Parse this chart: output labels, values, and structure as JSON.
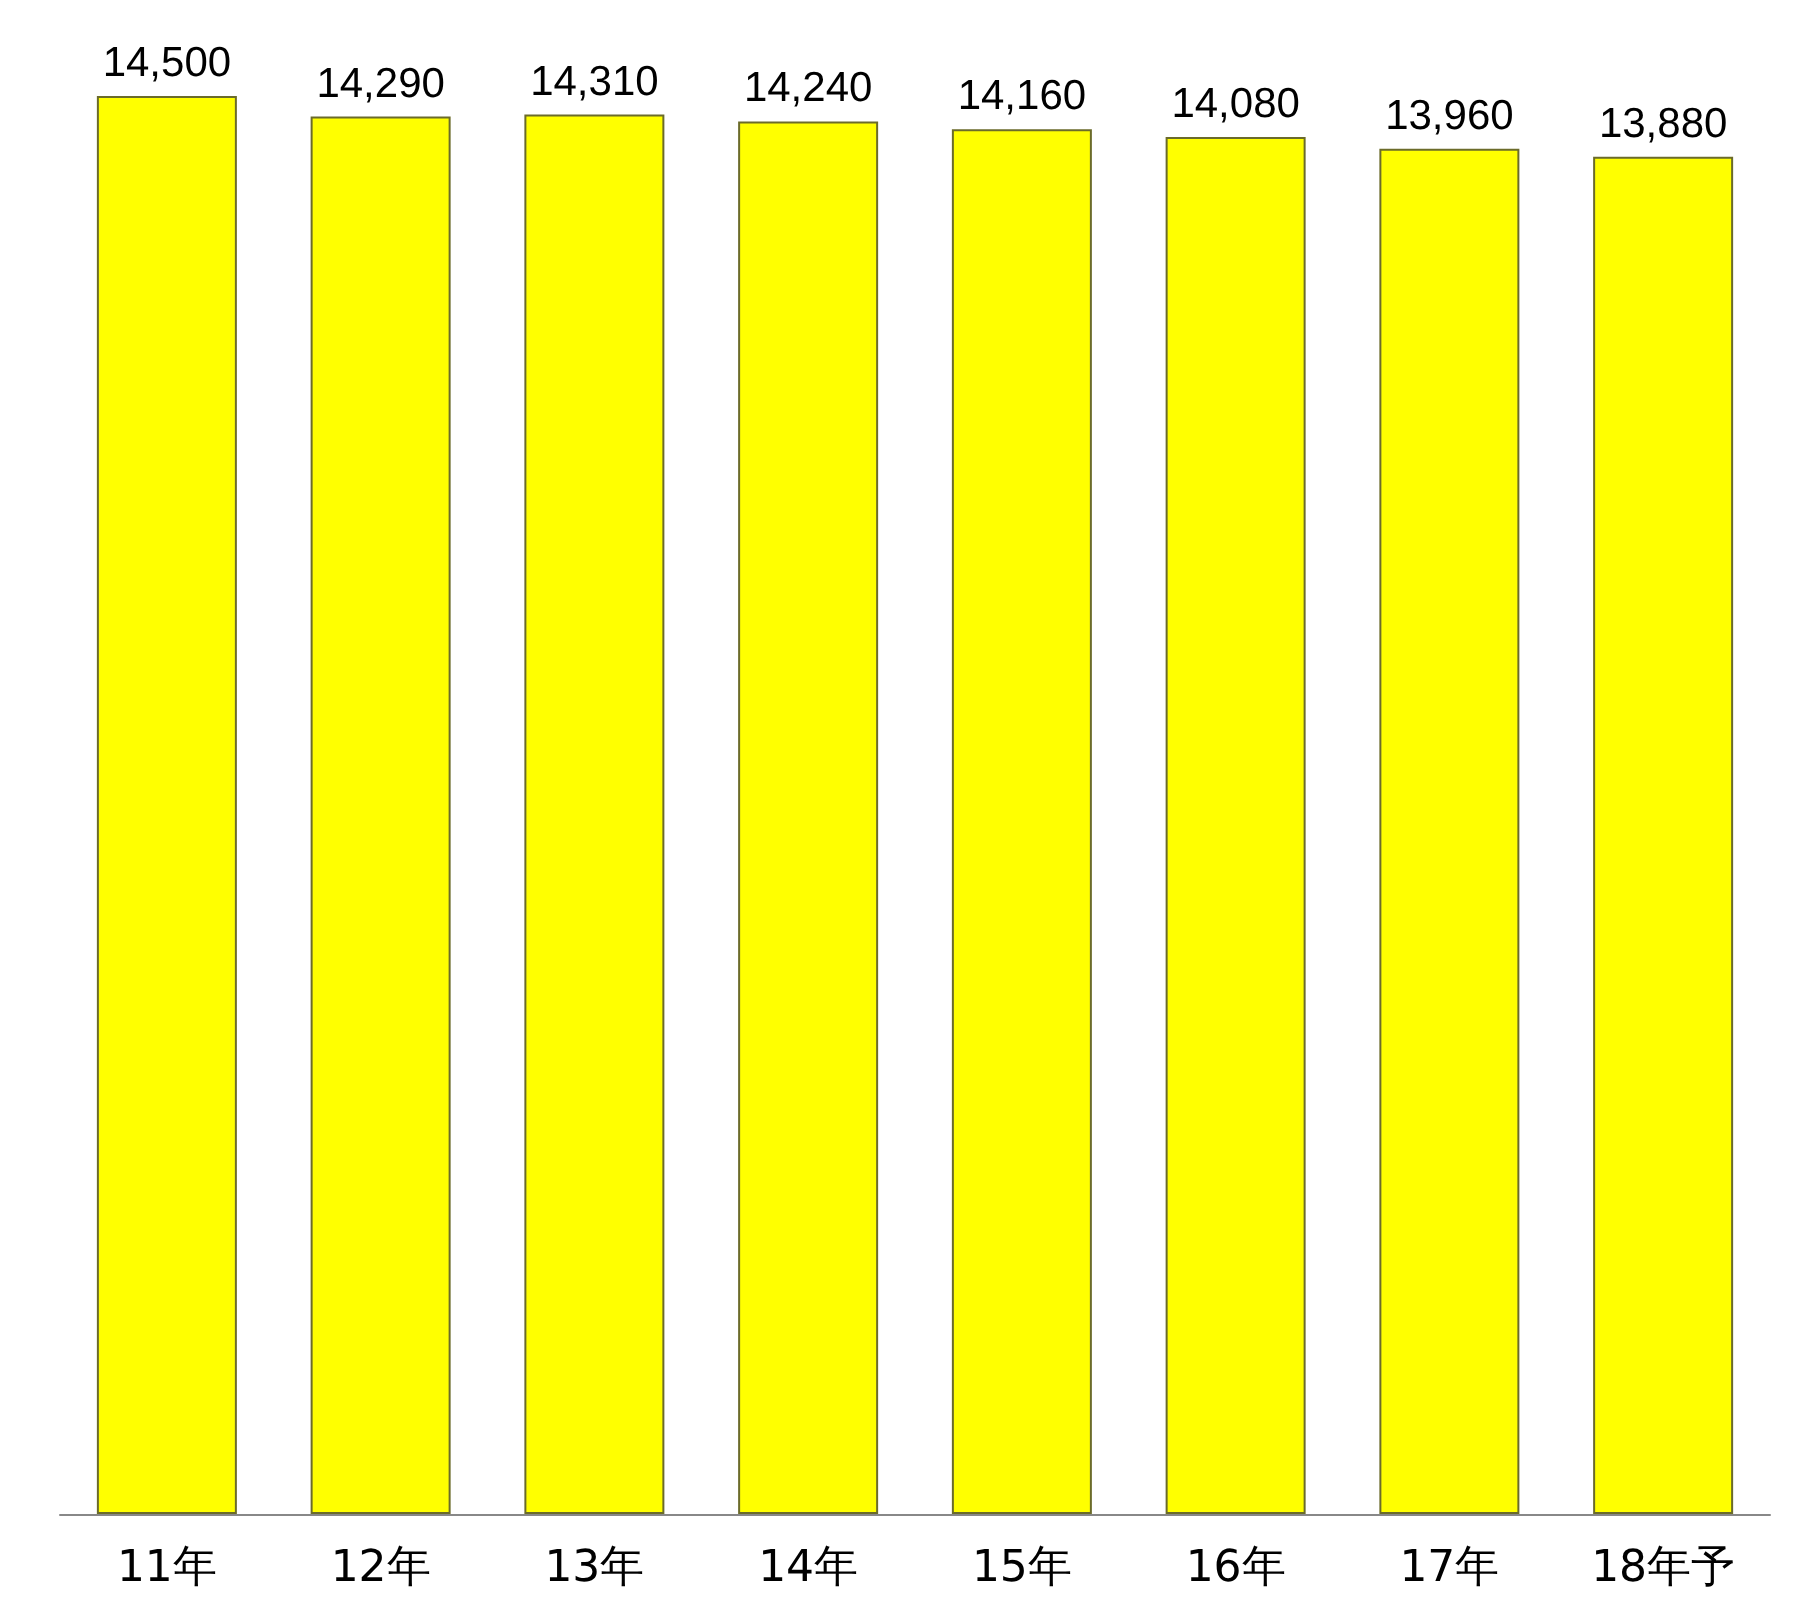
{
  "chart_data": {
    "type": "bar",
    "categories": [
      "11年",
      "12年",
      "13年",
      "14年",
      "15年",
      "16年",
      "17年",
      "18年予"
    ],
    "values": [
      14500,
      14290,
      14310,
      14240,
      14160,
      14080,
      13960,
      13880
    ],
    "value_labels": [
      "14,500",
      "14,290",
      "14,310",
      "14,240",
      "14,160",
      "14,080",
      "13,960",
      "13,880"
    ],
    "color": "#ffff00"
  }
}
